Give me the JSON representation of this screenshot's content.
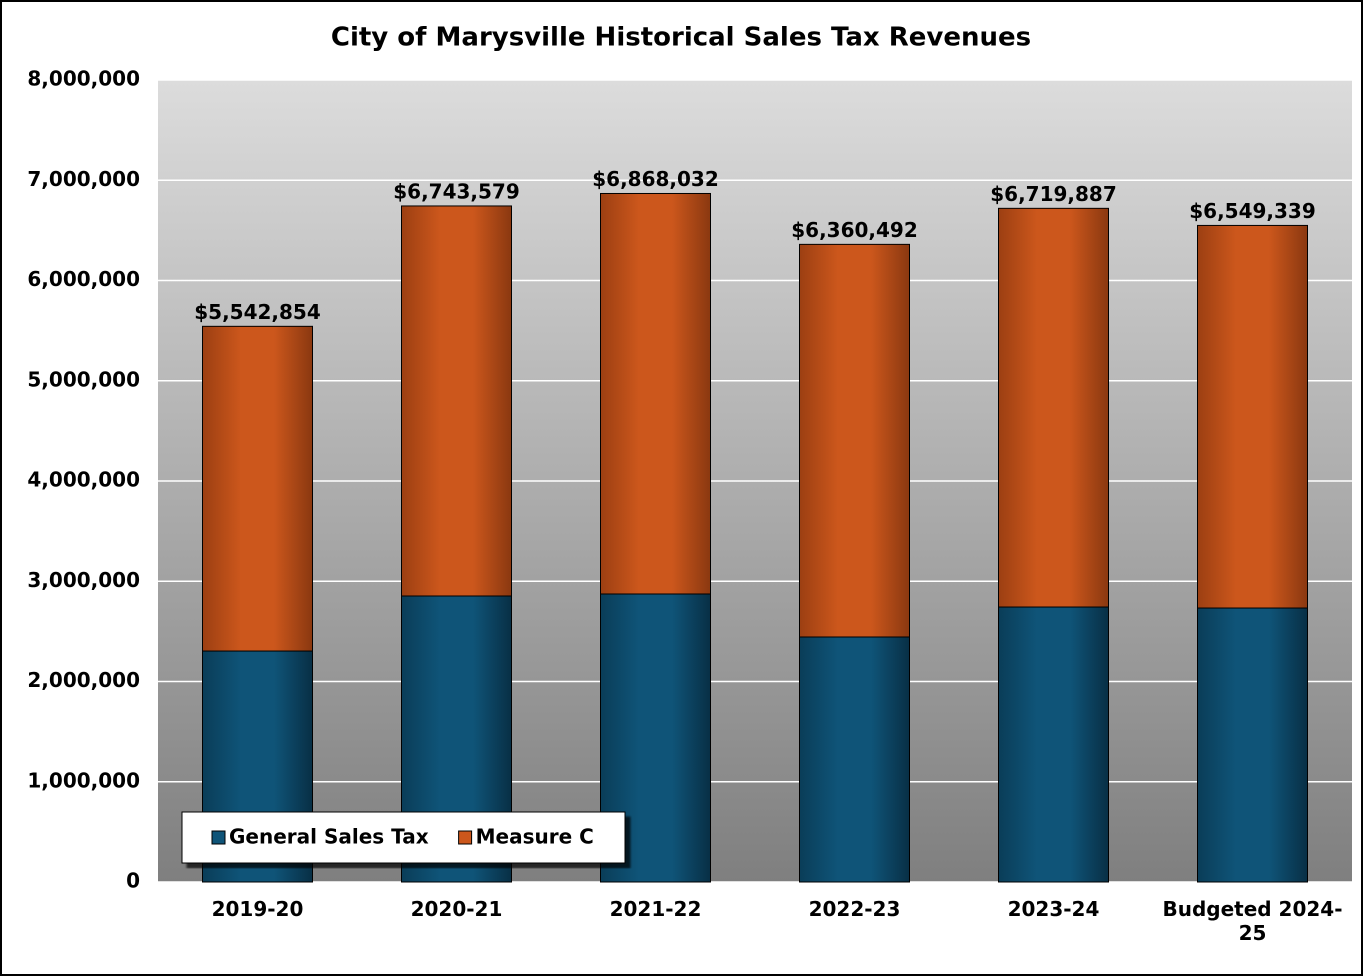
{
  "chart_data": {
    "type": "stacked_bar",
    "title": "City of Marysville Historical Sales Tax Revenues",
    "categories": [
      "2019-20",
      "2020-21",
      "2021-22",
      "2022-23",
      "2023-24",
      "Budgeted 2024-25"
    ],
    "series": [
      {
        "name": "General Sales Tax",
        "color": "#0f5478",
        "values": [
          2304000,
          2853000,
          2873000,
          2444000,
          2743000,
          2733000
        ]
      },
      {
        "name": "Measure C",
        "color": "#cc571c",
        "values": [
          3238854,
          3890579,
          3995032,
          3916492,
          3976887,
          3816339
        ]
      }
    ],
    "totals": [
      5542854,
      6743579,
      6868032,
      6360492,
      6719887,
      6549339
    ],
    "total_labels": [
      "$5,542,854",
      "$6,743,579",
      "$6,868,032",
      "$6,360,492",
      "$6,719,887",
      "$6,549,339"
    ],
    "ylim": [
      0,
      8000000
    ],
    "yticks": [
      0,
      {
        "value": 1000000,
        "label": "1,000,000"
      },
      {
        "value": 2000000,
        "label": "2,000,000"
      },
      {
        "value": 3000000,
        "label": "3,000,000"
      },
      {
        "value": 4000000,
        "label": "4,000,000"
      },
      {
        "value": 5000000,
        "label": "5,000,000"
      },
      {
        "value": 6000000,
        "label": "6,000,000"
      },
      {
        "value": 7000000,
        "label": "7,000,000"
      },
      {
        "value": 8000000,
        "label": "8,000,000"
      }
    ],
    "grid": true,
    "legend": "lower left"
  }
}
